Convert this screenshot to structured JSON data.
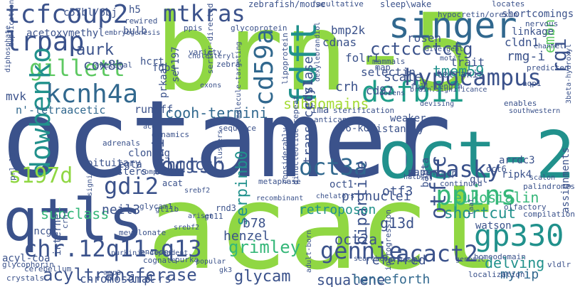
{
  "words": [
    {
      "text": "brn-5",
      "color": "#90d743"
    },
    {
      "text": "octamer",
      "color": "#3b528b"
    },
    {
      "text": "acact",
      "color": "#90d743"
    },
    {
      "text": "oct-2",
      "color": "#21918c"
    },
    {
      "text": "qtls",
      "color": "#3b528b"
    },
    {
      "text": "singer",
      "color": "#31688e"
    },
    {
      "text": "tcfcoup2",
      "color": "#3b528b"
    },
    {
      "text": "lrpap",
      "color": "#3b528b"
    },
    {
      "text": "gillett",
      "color": "#5ec962"
    },
    {
      "text": "mtkras",
      "color": "#3b528b"
    },
    {
      "text": "cd59a",
      "color": "#31688e"
    },
    {
      "text": "fdft",
      "color": "#21918c"
    },
    {
      "text": "defb11",
      "color": "#1f9e89"
    },
    {
      "text": "kcnh4a",
      "color": "#31688e"
    },
    {
      "text": "dowbenko",
      "color": "#21918c"
    },
    {
      "text": "hypocampus",
      "color": "#3b528b"
    },
    {
      "text": "gp330",
      "color": "#21918c"
    },
    {
      "text": "ppins",
      "color": "#35b779"
    },
    {
      "text": "lasky",
      "color": "#3b528b"
    },
    {
      "text": "oct3b",
      "color": "#3b528b"
    },
    {
      "text": "oct3a",
      "color": "#31688e"
    },
    {
      "text": "gdi2",
      "color": "#3b528b"
    },
    {
      "text": "s197d",
      "color": "#90d743"
    },
    {
      "text": "chr.12q11-q13",
      "color": "#3b528b"
    },
    {
      "text": "gennie",
      "color": "#3b528b"
    },
    {
      "text": "acact2",
      "color": "#3b528b"
    },
    {
      "text": "cctccctctg",
      "color": "#3b528b"
    },
    {
      "text": "rqi",
      "color": "#3b528b"
    },
    {
      "text": "embn",
      "color": "#5ec962"
    },
    {
      "text": "aurk",
      "color": "#3b528b"
    },
    {
      "text": "cox8b",
      "color": "#3b528b"
    },
    {
      "text": "otf3c",
      "color": "#3b528b"
    },
    {
      "text": "acyltransferase",
      "color": "#3b528b"
    },
    {
      "text": "shortcut",
      "color": "#21918c"
    },
    {
      "text": "grimley",
      "color": "#35b779"
    },
    {
      "text": "tmem59",
      "color": "#21918c"
    },
    {
      "text": "subdomains",
      "color": "#a5db36"
    },
    {
      "text": "cooh-termini",
      "color": "#31688e"
    },
    {
      "text": "hmgcs",
      "color": "#3b528b"
    },
    {
      "text": "swni",
      "color": "#3b528b"
    },
    {
      "text": "serpinb0",
      "color": "#21918c"
    },
    {
      "text": "glycam",
      "color": "#3b528b"
    },
    {
      "text": "squalene",
      "color": "#3b528b"
    },
    {
      "text": "henceforth",
      "color": "#31688e"
    },
    {
      "text": "delving",
      "color": "#21918c"
    },
    {
      "text": "myrip",
      "color": "#31688e"
    },
    {
      "text": "leukosialin",
      "color": "#35b779"
    },
    {
      "text": "referred",
      "color": "#3b528b"
    },
    {
      "text": "bipartite",
      "color": "#3b528b"
    },
    {
      "text": "g13d",
      "color": "#3b528b"
    },
    {
      "text": "oct2a",
      "color": "#3b528b"
    },
    {
      "text": "henzel",
      "color": "#3b528b"
    },
    {
      "text": "b78",
      "color": "#3b528b"
    },
    {
      "text": "retroposon",
      "color": "#21918c"
    },
    {
      "text": "chromosomal",
      "color": "#3b528b"
    },
    {
      "text": "lrp-rs",
      "color": "#3b528b"
    },
    {
      "text": "subclass",
      "color": "#35b779"
    },
    {
      "text": "neil3",
      "color": "#3b528b"
    },
    {
      "text": "pronuclei",
      "color": "#3b528b"
    },
    {
      "text": "crh",
      "color": "#3b528b"
    },
    {
      "text": "mvk",
      "color": "#3b528b"
    },
    {
      "text": "runoff",
      "color": "#3b528b"
    },
    {
      "text": "n'-tetraacetic",
      "color": "#31688e"
    },
    {
      "text": "transacetylase",
      "color": "#3b528b"
    },
    {
      "text": "cds1",
      "color": "#3b528b"
    },
    {
      "text": "cd97",
      "color": "#3b528b"
    },
    {
      "text": "scale",
      "color": "#3b528b"
    },
    {
      "text": "rosen",
      "color": "#3b528b"
    },
    {
      "text": "bmp2k",
      "color": "#3b528b"
    },
    {
      "text": "cdnas",
      "color": "#3b528b"
    },
    {
      "text": "folr1",
      "color": "#3b528b"
    },
    {
      "text": "selectin",
      "color": "#3b528b"
    },
    {
      "text": "trait",
      "color": "#3b528b"
    },
    {
      "text": "tetrakis",
      "color": "#3b528b"
    },
    {
      "text": "rmg-i",
      "color": "#3b528b"
    },
    {
      "text": "cldn1",
      "color": "#3b528b"
    },
    {
      "text": "linkage",
      "color": "#3b528b"
    },
    {
      "text": "nervous",
      "color": "#3b528b"
    },
    {
      "text": "shortcomings",
      "color": "#3b528b"
    },
    {
      "text": "locates",
      "color": "#3b528b"
    },
    {
      "text": "hypocretin/orexin",
      "color": "#3b528b"
    },
    {
      "text": "zebrafish/mouse",
      "color": "#3b528b"
    },
    {
      "text": "facultative",
      "color": "#3b528b"
    },
    {
      "text": "sleep\\wake",
      "color": "#3b528b"
    },
    {
      "text": "c57bl/6bj",
      "color": "#3b528b"
    },
    {
      "text": "h5",
      "color": "#3b528b"
    },
    {
      "text": "duplication",
      "color": "#3b528b"
    },
    {
      "text": "acetoxymethyl",
      "color": "#3b528b"
    },
    {
      "text": "bulb",
      "color": "#3b528b"
    },
    {
      "text": "rewired",
      "color": "#3b528b"
    },
    {
      "text": "embryogenesis",
      "color": "#3b528b"
    },
    {
      "text": "hcrt",
      "color": "#3b528b"
    },
    {
      "text": "ser197",
      "color": "#3b528b"
    },
    {
      "text": "fdps",
      "color": "#3b528b"
    },
    {
      "text": "prkaa1",
      "color": "#3b528b"
    },
    {
      "text": "ima",
      "color": "#3b528b"
    },
    {
      "text": "46-kda",
      "color": "#3b528b"
    },
    {
      "text": "weaker",
      "color": "#3b528b"
    },
    {
      "text": "distantly",
      "color": "#3b528b"
    },
    {
      "text": "arrdc3",
      "color": "#3b528b"
    },
    {
      "text": "ripk4",
      "color": "#3b528b"
    },
    {
      "text": "mgp",
      "color": "#3b528b"
    },
    {
      "text": "oct6",
      "color": "#3b528b"
    },
    {
      "text": "qtl",
      "color": "#3b528b"
    },
    {
      "text": "paper",
      "color": "#3b528b"
    },
    {
      "text": "oct1",
      "color": "#3b528b"
    },
    {
      "text": "rnd3",
      "color": "#3b528b"
    },
    {
      "text": "gt11",
      "color": "#3b528b"
    },
    {
      "text": "esters",
      "color": "#3b528b"
    },
    {
      "text": "egta",
      "color": "#3b528b"
    },
    {
      "text": "cloning",
      "color": "#3b528b"
    },
    {
      "text": "pituitary",
      "color": "#3b528b"
    },
    {
      "text": "acat",
      "color": "#3b528b"
    },
    {
      "text": "sncg",
      "color": "#3b528b"
    },
    {
      "text": "acyl-coa",
      "color": "#3b528b"
    },
    {
      "text": "glycophorin",
      "color": "#3b528b"
    },
    {
      "text": "internet",
      "color": "#3b528b"
    },
    {
      "text": "mevalonate",
      "color": "#3b528b"
    },
    {
      "text": "encoded",
      "color": "#3b528b"
    },
    {
      "text": "cognate",
      "color": "#3b528b"
    },
    {
      "text": "otf3",
      "color": "#3b528b"
    },
    {
      "text": "bapta",
      "color": "#3b528b"
    },
    {
      "text": "watson",
      "color": "#3b528b"
    },
    {
      "text": "assignments",
      "color": "#3b528b"
    },
    {
      "text": "vldlr",
      "color": "#3b528b"
    },
    {
      "text": "homeodomain",
      "color": "#3b528b"
    },
    {
      "text": "introgression",
      "color": "#3b528b"
    },
    {
      "text": "farnesyl",
      "color": "#3b528b"
    },
    {
      "text": "localization",
      "color": "#3b528b"
    },
    {
      "text": "compilation",
      "color": "#3b528b"
    },
    {
      "text": "olfactory",
      "color": "#3b528b"
    },
    {
      "text": "palindromes",
      "color": "#3b528b"
    },
    {
      "text": "continued",
      "color": "#3b528b"
    },
    {
      "text": "predicted",
      "color": "#3b528b"
    },
    {
      "text": "3beta-hydroxyl",
      "color": "#3b528b"
    },
    {
      "text": "aqp1",
      "color": "#3b528b"
    },
    {
      "text": "enables",
      "color": "#3b528b"
    },
    {
      "text": "southwestern",
      "color": "#3b528b"
    },
    {
      "text": "full-length",
      "color": "#3b528b"
    },
    {
      "text": "brain.significance",
      "color": "#3b528b"
    },
    {
      "text": "map",
      "color": "#3b528b"
    },
    {
      "text": "mammals",
      "color": "#3b528b"
    },
    {
      "text": "dozens",
      "color": "#3b528b"
    },
    {
      "text": "sterification",
      "color": "#3b528b"
    },
    {
      "text": "variety",
      "color": "#3b528b"
    },
    {
      "text": "cholesteryl",
      "color": "#3b528b"
    },
    {
      "text": "zebra",
      "color": "#3b528b"
    },
    {
      "text": "skeletal",
      "color": "#3b528b"
    },
    {
      "text": "sequence",
      "color": "#3b528b"
    },
    {
      "text": "dynamics",
      "color": "#3b528b"
    },
    {
      "text": "adrenals",
      "color": "#3b528b"
    },
    {
      "text": "compendium",
      "color": "#3b528b"
    },
    {
      "text": "metaphase",
      "color": "#3b528b"
    },
    {
      "text": "considerably",
      "color": "#3b528b"
    },
    {
      "text": "dinucleotide-repeat",
      "color": "#3b528b"
    },
    {
      "text": "recombinant",
      "color": "#3b528b"
    },
    {
      "text": "chelators",
      "color": "#3b528b"
    },
    {
      "text": "srebf2",
      "color": "#3b528b"
    },
    {
      "text": "purka",
      "color": "#3b528b"
    },
    {
      "text": "cerebellum",
      "color": "#3b528b"
    },
    {
      "text": "crystals",
      "color": "#3b528b"
    },
    {
      "text": "mmp3",
      "color": "#3b528b"
    },
    {
      "text": "popular",
      "color": "#3b528b"
    },
    {
      "text": "searched",
      "color": "#3b528b"
    },
    {
      "text": "adult-born",
      "color": "#3b528b"
    },
    {
      "text": "genomic",
      "color": "#3b528b"
    },
    {
      "text": "clusters",
      "color": "#3b528b"
    },
    {
      "text": "devising",
      "color": "#3b528b"
    },
    {
      "text": "exons",
      "color": "#3b528b"
    },
    {
      "text": "motif",
      "color": "#3b528b"
    },
    {
      "text": "divergent",
      "color": "#3b528b"
    },
    {
      "text": "prl-luc",
      "color": "#3b528b"
    },
    {
      "text": "diphosphate",
      "color": "#3b528b"
    },
    {
      "text": "glycoprotein",
      "color": "#3b528b"
    },
    {
      "text": "ppis",
      "color": "#3b528b"
    },
    {
      "text": "serthr-directed",
      "color": "#3b528b"
    },
    {
      "text": "anticancer",
      "color": "#3b528b"
    },
    {
      "text": "lipoprotein",
      "color": "#3b528b"
    },
    {
      "text": "ace",
      "color": "#3b528b"
    },
    {
      "text": "crhr",
      "color": "#3b528b"
    },
    {
      "text": "glycam1",
      "color": "#3b528b"
    },
    {
      "text": "gt11b",
      "color": "#3b528b"
    },
    {
      "text": "arisen",
      "color": "#3b528b"
    },
    {
      "text": "srebf2",
      "color": "#3b528b"
    },
    {
      "text": "channel",
      "color": "#3b528b"
    },
    {
      "text": "taat",
      "color": "#3b528b"
    },
    {
      "text": "halb/cj",
      "color": "#3b528b"
    },
    {
      "text": "signify",
      "color": "#3b528b"
    },
    {
      "text": "molecule-targeting",
      "color": "#3b528b"
    },
    {
      "text": "dexylebrandiol",
      "color": "#3b528b"
    },
    {
      "text": "purkinje-dependent",
      "color": "#3b528b"
    },
    {
      "text": "gk3",
      "color": "#3b528b"
    },
    {
      "text": "scalon",
      "color": "#3b528b"
    }
  ]
}
